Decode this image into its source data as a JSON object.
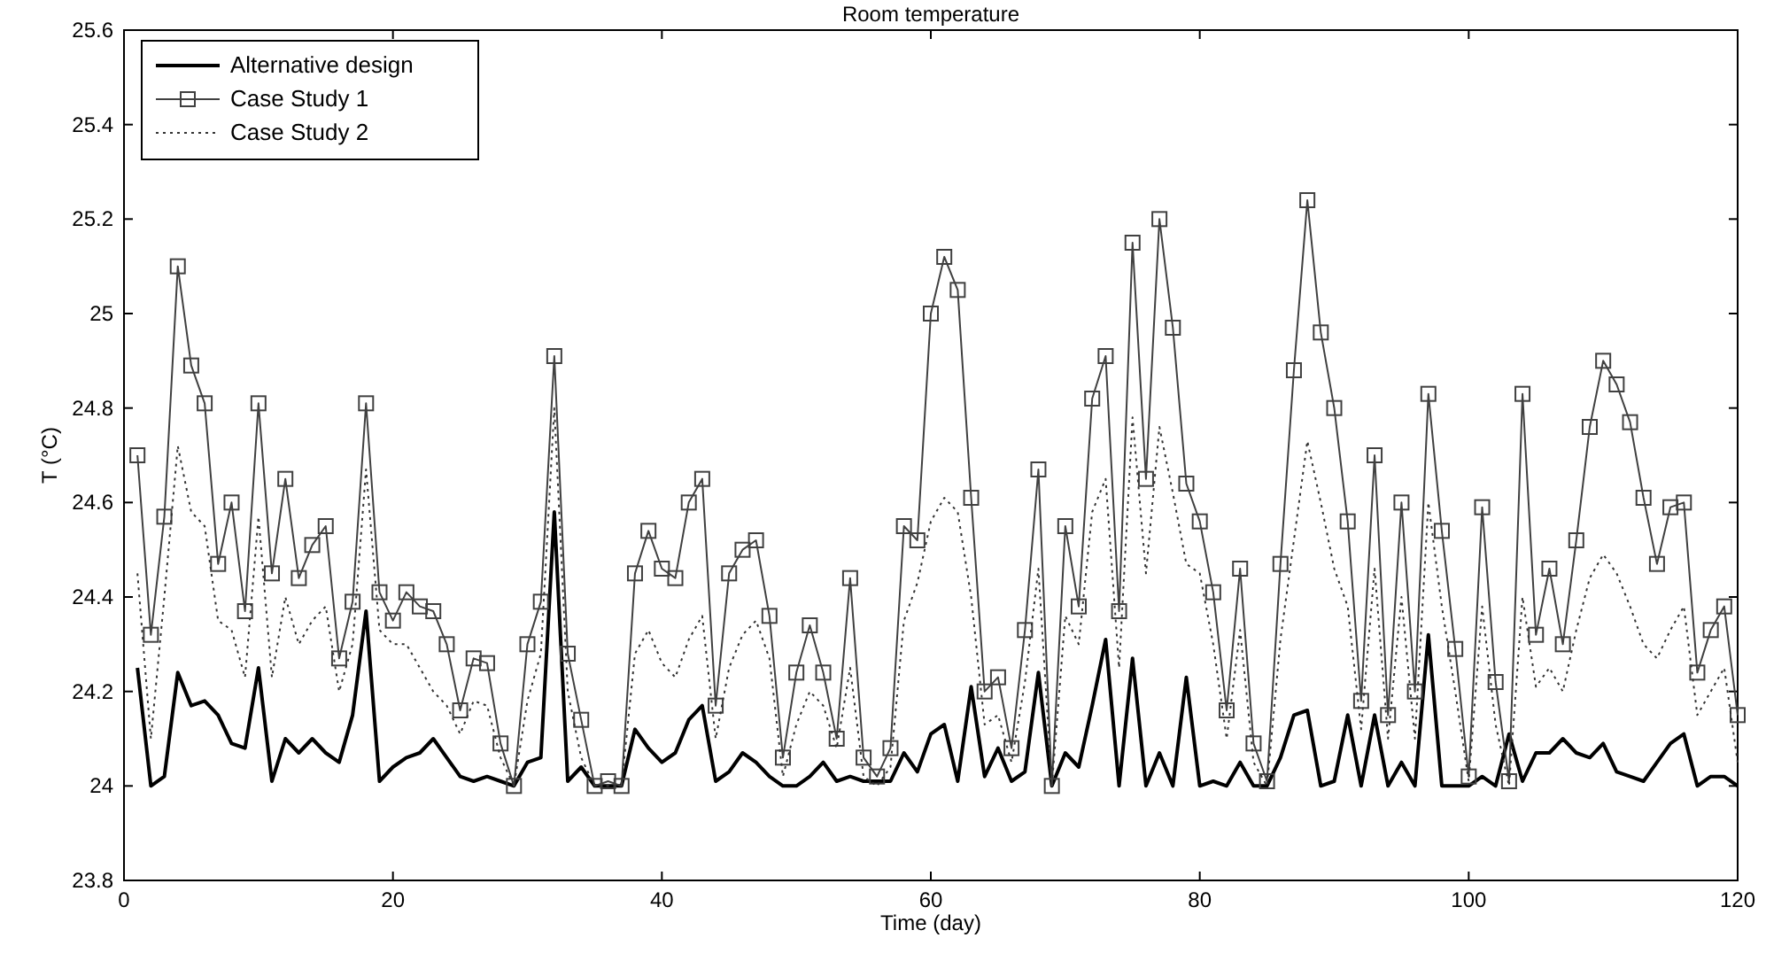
{
  "chart_data": {
    "type": "line",
    "title": "Room temperature",
    "xlabel": "Time (day)",
    "ylabel": "T (°C)",
    "x": [
      1,
      2,
      3,
      4,
      5,
      6,
      7,
      8,
      9,
      10,
      11,
      12,
      13,
      14,
      15,
      16,
      17,
      18,
      19,
      20,
      21,
      22,
      23,
      24,
      25,
      26,
      27,
      28,
      29,
      30,
      31,
      32,
      33,
      34,
      35,
      36,
      37,
      38,
      39,
      40,
      41,
      42,
      43,
      44,
      45,
      46,
      47,
      48,
      49,
      50,
      51,
      52,
      53,
      54,
      55,
      56,
      57,
      58,
      59,
      60,
      61,
      62,
      63,
      64,
      65,
      66,
      67,
      68,
      69,
      70,
      71,
      72,
      73,
      74,
      75,
      76,
      77,
      78,
      79,
      80,
      81,
      82,
      83,
      84,
      85,
      86,
      87,
      88,
      89,
      90,
      91,
      92,
      93,
      94,
      95,
      96,
      97,
      98,
      99,
      100,
      101,
      102,
      103,
      104,
      105,
      106,
      107,
      108,
      109,
      110,
      111,
      112,
      113,
      114,
      115,
      116,
      117,
      118,
      119,
      120
    ],
    "xlim": [
      0,
      120
    ],
    "xticks": [
      0,
      20,
      40,
      60,
      80,
      100,
      120
    ],
    "ylim": [
      23.8,
      25.6
    ],
    "yticks": [
      23.8,
      24,
      24.2,
      24.4,
      24.6,
      24.8,
      25,
      25.2,
      25.4,
      25.6
    ],
    "grid": false,
    "legend": "top left",
    "series": [
      {
        "name": "Alternative design",
        "color": "#000000",
        "marker": "none",
        "line_style": "solid",
        "values": [
          24.25,
          24.0,
          24.02,
          24.24,
          24.17,
          24.18,
          24.15,
          24.09,
          24.08,
          24.25,
          24.01,
          24.1,
          24.07,
          24.1,
          24.07,
          24.05,
          24.15,
          24.37,
          24.01,
          24.04,
          24.06,
          24.07,
          24.1,
          24.06,
          24.02,
          24.01,
          24.02,
          24.01,
          24.0,
          24.05,
          24.06,
          24.58,
          24.01,
          24.04,
          24.0,
          24.0,
          24.0,
          24.12,
          24.08,
          24.05,
          24.07,
          24.14,
          24.17,
          24.01,
          24.03,
          24.07,
          24.05,
          24.02,
          24.0,
          24.0,
          24.02,
          24.05,
          24.01,
          24.02,
          24.01,
          24.01,
          24.01,
          24.07,
          24.03,
          24.11,
          24.13,
          24.01,
          24.21,
          24.02,
          24.08,
          24.01,
          24.03,
          24.24,
          24.0,
          24.07,
          24.04,
          24.17,
          24.31,
          24.0,
          24.27,
          24.0,
          24.07,
          24.0,
          24.23,
          24.0,
          24.01,
          24.0,
          24.05,
          24.0,
          24.0,
          24.06,
          24.15,
          24.16,
          24.0,
          24.01,
          24.15,
          24.0,
          24.15,
          24.0,
          24.05,
          24.0,
          24.32,
          24.0,
          24.0,
          24.0,
          24.02,
          24.0,
          24.11,
          24.01,
          24.07,
          24.07,
          24.1,
          24.07,
          24.06,
          24.09,
          24.03,
          24.02,
          24.01,
          24.05,
          24.09,
          24.11,
          24.0,
          24.02,
          24.02,
          24.0
        ]
      },
      {
        "name": "Case Study 1",
        "color": "#404040",
        "marker": "square",
        "line_style": "solid",
        "values": [
          24.7,
          24.32,
          24.57,
          25.1,
          24.89,
          24.81,
          24.47,
          24.6,
          24.37,
          24.81,
          24.45,
          24.65,
          24.44,
          24.51,
          24.55,
          24.27,
          24.39,
          24.81,
          24.41,
          24.35,
          24.41,
          24.38,
          24.37,
          24.3,
          24.16,
          24.27,
          24.26,
          24.09,
          24.0,
          24.3,
          24.39,
          24.91,
          24.28,
          24.14,
          24.0,
          24.01,
          24.0,
          24.45,
          24.54,
          24.46,
          24.44,
          24.6,
          24.65,
          24.17,
          24.45,
          24.5,
          24.52,
          24.36,
          24.06,
          24.24,
          24.34,
          24.24,
          24.1,
          24.44,
          24.06,
          24.02,
          24.08,
          24.55,
          24.52,
          25.0,
          25.12,
          25.05,
          24.61,
          24.2,
          24.23,
          24.08,
          24.33,
          24.67,
          24.0,
          24.55,
          24.38,
          24.82,
          24.91,
          24.37,
          25.15,
          24.65,
          25.2,
          24.97,
          24.64,
          24.56,
          24.41,
          24.16,
          24.46,
          24.09,
          24.01,
          24.47,
          24.88,
          25.24,
          24.96,
          24.8,
          24.56,
          24.18,
          24.7,
          24.15,
          24.6,
          24.2,
          24.83,
          24.54,
          24.29,
          24.02,
          24.59,
          24.22,
          24.01,
          24.83,
          24.32,
          24.46,
          24.3,
          24.52,
          24.76,
          24.9,
          24.85,
          24.77,
          24.61,
          24.47,
          24.59,
          24.6,
          24.24,
          24.33,
          24.38,
          24.15
        ]
      },
      {
        "name": "Case Study 2",
        "color": "#333333",
        "marker": "none",
        "line_style": "dotted",
        "values": [
          24.45,
          24.1,
          24.4,
          24.72,
          24.58,
          24.55,
          24.35,
          24.33,
          24.23,
          24.57,
          24.23,
          24.4,
          24.3,
          24.35,
          24.38,
          24.2,
          24.3,
          24.67,
          24.33,
          24.3,
          24.3,
          24.25,
          24.2,
          24.17,
          24.11,
          24.18,
          24.17,
          24.06,
          24.0,
          24.18,
          24.28,
          24.8,
          24.2,
          24.06,
          24.0,
          24.0,
          24.0,
          24.28,
          24.33,
          24.26,
          24.23,
          24.31,
          24.36,
          24.1,
          24.25,
          24.32,
          24.35,
          24.27,
          24.02,
          24.13,
          24.2,
          24.17,
          24.08,
          24.25,
          24.02,
          24.0,
          24.04,
          24.35,
          24.43,
          24.56,
          24.61,
          24.58,
          24.4,
          24.13,
          24.15,
          24.05,
          24.22,
          24.46,
          24.0,
          24.36,
          24.3,
          24.58,
          24.65,
          24.25,
          24.78,
          24.45,
          24.76,
          24.62,
          24.47,
          24.45,
          24.3,
          24.1,
          24.33,
          24.05,
          24.0,
          24.31,
          24.52,
          24.73,
          24.6,
          24.46,
          24.38,
          24.12,
          24.46,
          24.1,
          24.4,
          24.1,
          24.6,
          24.38,
          24.2,
          24.01,
          24.38,
          24.13,
          24.0,
          24.4,
          24.21,
          24.25,
          24.2,
          24.33,
          24.44,
          24.49,
          24.45,
          24.38,
          24.3,
          24.27,
          24.33,
          24.38,
          24.15,
          24.2,
          24.25,
          24.05
        ]
      }
    ]
  }
}
